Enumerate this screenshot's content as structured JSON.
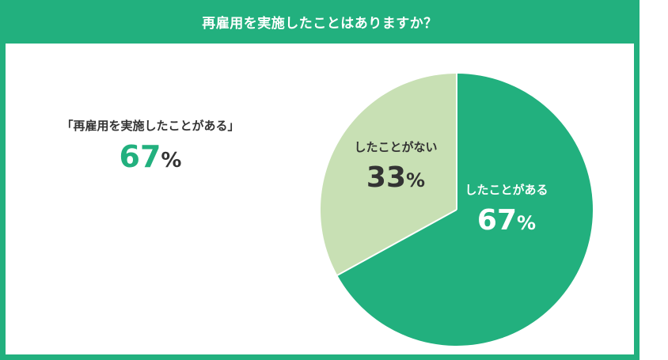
{
  "header": {
    "title": "再雇用を実施したことはありますか？"
  },
  "summary": {
    "label": "「再雇用を実施したことがある」",
    "value": "67",
    "unit": "%"
  },
  "colors": {
    "brand": "#22b07e",
    "secondary": "#c8e0b4",
    "dark_text": "#333333"
  },
  "chart_data": {
    "type": "pie",
    "title": "再雇用を実施したことはありますか？",
    "slices": [
      {
        "label": "したことがある",
        "value": 67,
        "display": "67",
        "unit": "%",
        "color": "#22b07e",
        "label_color": "#ffffff"
      },
      {
        "label": "したことがない",
        "value": 33,
        "display": "33",
        "unit": "%",
        "color": "#c8e0b4",
        "label_color": "#333333"
      }
    ],
    "start": "12 o'clock",
    "direction": "clockwise",
    "legend": "none"
  }
}
